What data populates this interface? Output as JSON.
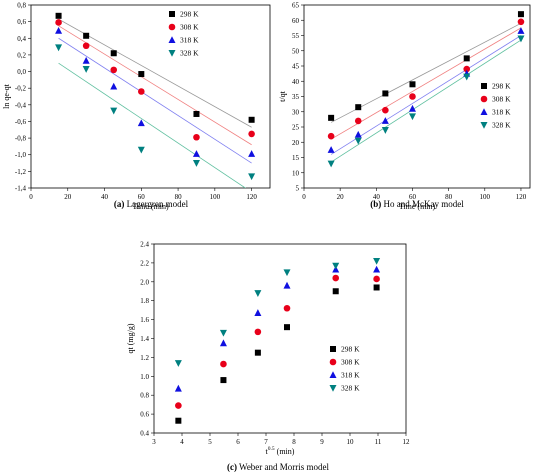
{
  "chart_data": [
    {
      "id": "lagergren",
      "type": "scatter",
      "caption_letter": "(a)",
      "caption_text": " Lagergren model",
      "xlabel": "Time (min)",
      "ylabel": "ln qe-qt",
      "xlim": [
        0,
        130
      ],
      "ylim": [
        -1.4,
        0.8
      ],
      "xticks": [
        0,
        20,
        40,
        60,
        80,
        100,
        120
      ],
      "yticks": [
        -1.4,
        -1.2,
        -1.0,
        -0.8,
        -0.6,
        -0.4,
        -0.2,
        0.0,
        0.2,
        0.4,
        0.6,
        0.8
      ],
      "ytick_labels": [
        "-1,4",
        "-1,2",
        "-1,0",
        "-0,8",
        "-0,6",
        "-0,4",
        "-0,2",
        "0,0",
        "0,2",
        "0,4",
        "0,6",
        "0,8"
      ],
      "legend_position": "top-right",
      "series": [
        {
          "name": "298 K",
          "marker": "square",
          "color": "#000000",
          "line_color": "#999999",
          "x": [
            15,
            30,
            45,
            60,
            90,
            120
          ],
          "y": [
            0.67,
            0.43,
            0.22,
            -0.03,
            -0.51,
            -0.58
          ],
          "fit": [
            [
              15,
              0.63
            ],
            [
              120,
              -0.67
            ]
          ]
        },
        {
          "name": "308 K",
          "marker": "circle",
          "color": "#e8001a",
          "line_color": "#f08080",
          "x": [
            15,
            30,
            45,
            60,
            90,
            120
          ],
          "y": [
            0.59,
            0.31,
            0.02,
            -0.24,
            -0.79,
            -0.75
          ],
          "fit": [
            [
              15,
              0.55
            ],
            [
              120,
              -0.88
            ]
          ]
        },
        {
          "name": "318 K",
          "marker": "triangle-up",
          "color": "#1010e0",
          "line_color": "#8080f0",
          "x": [
            15,
            30,
            45,
            60,
            90,
            120
          ],
          "y": [
            0.49,
            0.13,
            -0.18,
            -0.62,
            -0.99,
            -0.99
          ],
          "fit": [
            [
              15,
              0.4
            ],
            [
              120,
              -1.1
            ]
          ]
        },
        {
          "name": "328 K",
          "marker": "triangle-down",
          "color": "#008080",
          "line_color": "#60c0a0",
          "x": [
            15,
            30,
            45,
            60,
            90,
            120
          ],
          "y": [
            0.29,
            0.03,
            -0.47,
            -0.94,
            -1.1,
            -1.26
          ],
          "fit": [
            [
              15,
              0.1
            ],
            [
              120,
              -1.45
            ]
          ]
        }
      ]
    },
    {
      "id": "hoMcKay",
      "type": "scatter",
      "caption_letter": "(b)",
      "caption_text": " Ho and McKay model",
      "xlabel": "Time (min)",
      "ylabel": "t/qt",
      "xlim": [
        0,
        125
      ],
      "ylim": [
        5,
        65
      ],
      "xticks": [
        0,
        20,
        40,
        60,
        80,
        100,
        120
      ],
      "yticks": [
        5,
        10,
        15,
        20,
        25,
        30,
        35,
        40,
        45,
        50,
        55,
        60,
        65
      ],
      "legend_position": "center-right",
      "series": [
        {
          "name": "298 K",
          "marker": "square",
          "color": "#000000",
          "line_color": "#999999",
          "x": [
            15,
            30,
            45,
            60,
            90,
            120
          ],
          "y": [
            28,
            31.5,
            36,
            39,
            47.5,
            62
          ],
          "fit": [
            [
              15,
              26.5
            ],
            [
              120,
              59
            ]
          ]
        },
        {
          "name": "308 K",
          "marker": "circle",
          "color": "#e8001a",
          "line_color": "#f08080",
          "x": [
            15,
            30,
            45,
            60,
            90,
            120
          ],
          "y": [
            22,
            27,
            30.5,
            35,
            44,
            59.5
          ],
          "fit": [
            [
              15,
              21
            ],
            [
              120,
              57.5
            ]
          ]
        },
        {
          "name": "318 K",
          "marker": "triangle-up",
          "color": "#1010e0",
          "line_color": "#8080f0",
          "x": [
            15,
            30,
            45,
            60,
            90,
            120
          ],
          "y": [
            17.5,
            22.5,
            27,
            31,
            42.5,
            56.5
          ],
          "fit": [
            [
              15,
              16
            ],
            [
              120,
              55
            ]
          ]
        },
        {
          "name": "328 K",
          "marker": "triangle-down",
          "color": "#008080",
          "line_color": "#60c0a0",
          "x": [
            15,
            30,
            45,
            60,
            90,
            120
          ],
          "y": [
            13,
            20.5,
            24,
            28.5,
            41.5,
            54
          ],
          "fit": [
            [
              15,
              13.5
            ],
            [
              120,
              53.5
            ]
          ]
        }
      ]
    },
    {
      "id": "weberMorris",
      "type": "scatter",
      "caption_letter": "(c)",
      "caption_text": " Weber and Morris model",
      "xlabel_main": "t",
      "xlabel_sup": "0.5",
      "xlabel_rest": " (min)",
      "ylabel": "qt (mg/g)",
      "xlim": [
        3,
        12
      ],
      "ylim": [
        0.4,
        2.4
      ],
      "xticks": [
        3,
        4,
        5,
        6,
        7,
        8,
        9,
        10,
        11,
        12
      ],
      "yticks": [
        0.4,
        0.6,
        0.8,
        1.0,
        1.2,
        1.4,
        1.6,
        1.8,
        2.0,
        2.2,
        2.4
      ],
      "ytick_labels": [
        "0.4",
        "0.6",
        "0.8",
        "1.0",
        "1.2",
        "1.4",
        "1.6",
        "1.8",
        "2.0",
        "2.2",
        "2.4"
      ],
      "legend_position": "lower-right",
      "series": [
        {
          "name": "298 K",
          "marker": "square",
          "color": "#000000",
          "x": [
            3.87,
            5.48,
            6.71,
            7.75,
            9.49,
            10.95
          ],
          "y": [
            0.53,
            0.96,
            1.25,
            1.52,
            1.9,
            1.94
          ]
        },
        {
          "name": "308 K",
          "marker": "circle",
          "color": "#e8001a",
          "x": [
            3.87,
            5.48,
            6.71,
            7.75,
            9.49,
            10.95
          ],
          "y": [
            0.69,
            1.13,
            1.47,
            1.72,
            2.04,
            2.03
          ]
        },
        {
          "name": "318 K",
          "marker": "triangle-up",
          "color": "#1010e0",
          "x": [
            3.87,
            5.48,
            6.71,
            7.75,
            9.49,
            10.95
          ],
          "y": [
            0.87,
            1.35,
            1.67,
            1.96,
            2.13,
            2.13
          ]
        },
        {
          "name": "328 K",
          "marker": "triangle-down",
          "color": "#008080",
          "x": [
            3.87,
            5.48,
            6.71,
            7.75,
            9.49,
            10.95
          ],
          "y": [
            1.14,
            1.46,
            1.88,
            2.1,
            2.17,
            2.22
          ]
        }
      ]
    }
  ]
}
